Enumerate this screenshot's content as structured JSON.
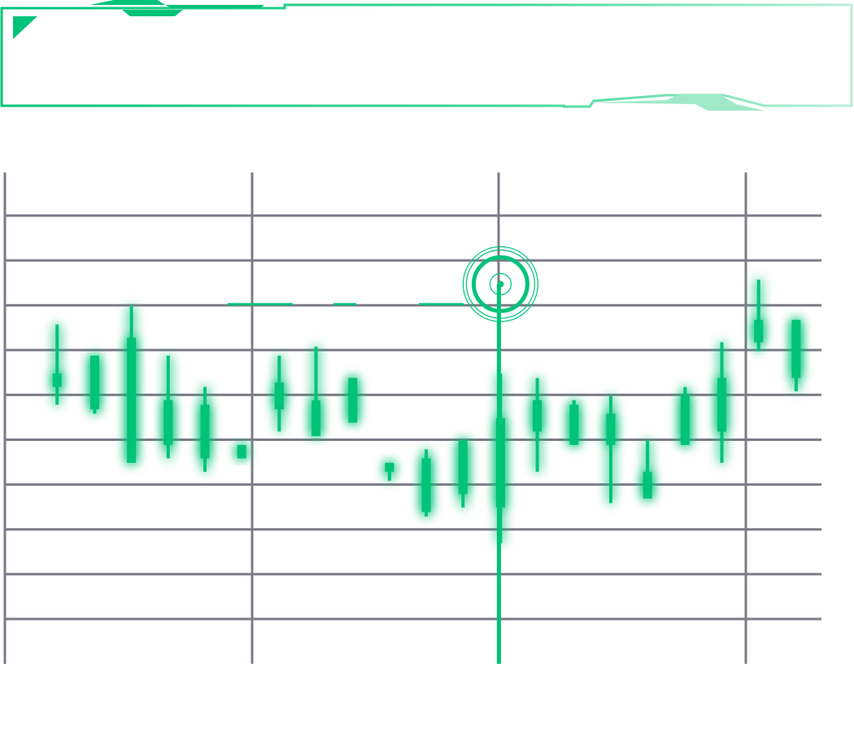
{
  "colors": {
    "accent": "#00c37a",
    "accent_light": "#5fe0b0",
    "accent_pale": "#c8f5e2",
    "grid": "#7c7b86",
    "background": "#ffffff"
  },
  "header": {
    "decoration": "angled-frame-banner",
    "corner_icon": "triangle-corner-icon"
  },
  "marker": {
    "icon": "target-crosshair-icon"
  },
  "chart_data": {
    "type": "candlestick",
    "grid": true,
    "ylim": [
      0,
      11
    ],
    "xlim": [
      0,
      1
    ],
    "candles": [
      {
        "x": 0.064,
        "open": 6.2,
        "close": 6.5,
        "high": 7.6,
        "low": 5.8
      },
      {
        "x": 0.11,
        "open": 6.9,
        "close": 5.7,
        "high": 6.9,
        "low": 5.6
      },
      {
        "x": 0.155,
        "open": 7.3,
        "close": 4.5,
        "high": 8.0,
        "low": 4.5
      },
      {
        "x": 0.2,
        "open": 5.9,
        "close": 4.9,
        "high": 6.9,
        "low": 4.6
      },
      {
        "x": 0.245,
        "open": 5.8,
        "close": 4.6,
        "high": 6.2,
        "low": 4.3
      },
      {
        "x": 0.29,
        "open": 4.9,
        "close": 4.6,
        "high": 4.9,
        "low": 4.6
      },
      {
        "x": 0.336,
        "open": 6.3,
        "close": 5.7,
        "high": 6.9,
        "low": 5.2
      },
      {
        "x": 0.381,
        "open": 5.9,
        "close": 5.1,
        "high": 7.1,
        "low": 5.1
      },
      {
        "x": 0.426,
        "open": 6.4,
        "close": 5.4,
        "high": 6.4,
        "low": 5.4
      },
      {
        "x": 0.471,
        "open": 4.5,
        "close": 4.3,
        "high": 4.5,
        "low": 4.1
      },
      {
        "x": 0.516,
        "open": 4.6,
        "close": 3.4,
        "high": 4.8,
        "low": 3.3
      },
      {
        "x": 0.561,
        "open": 5.0,
        "close": 3.8,
        "high": 5.0,
        "low": 3.5
      },
      {
        "x": 0.607,
        "open": 5.5,
        "close": 3.5,
        "high": 6.5,
        "low": 2.7
      },
      {
        "x": 0.652,
        "open": 5.9,
        "close": 5.2,
        "high": 6.4,
        "low": 4.3
      },
      {
        "x": 0.697,
        "open": 5.8,
        "close": 4.9,
        "high": 5.9,
        "low": 4.9
      },
      {
        "x": 0.742,
        "open": 5.6,
        "close": 4.9,
        "high": 6.0,
        "low": 3.6
      },
      {
        "x": 0.787,
        "open": 4.3,
        "close": 3.7,
        "high": 5.0,
        "low": 3.7
      },
      {
        "x": 0.833,
        "open": 4.9,
        "close": 6.0,
        "high": 6.2,
        "low": 4.9
      },
      {
        "x": 0.878,
        "open": 5.2,
        "close": 6.4,
        "high": 7.2,
        "low": 4.5
      },
      {
        "x": 0.923,
        "open": 7.2,
        "close": 7.7,
        "high": 8.6,
        "low": 7.0
      },
      {
        "x": 0.969,
        "open": 7.7,
        "close": 6.4,
        "high": 7.7,
        "low": 6.1
      }
    ],
    "crosshair": {
      "x": 0.607,
      "y": 8.5
    }
  }
}
